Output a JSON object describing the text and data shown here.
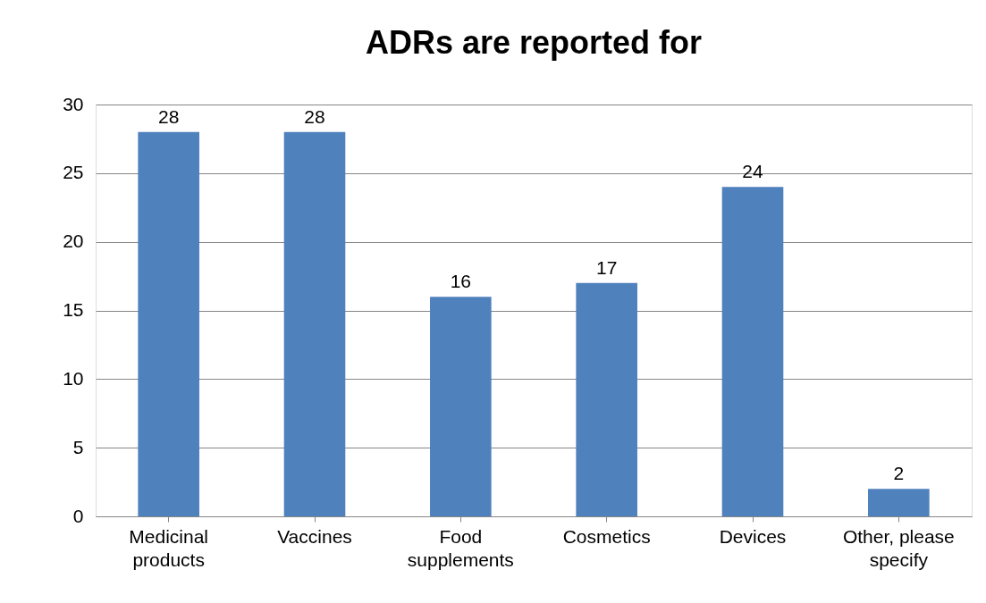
{
  "chart_data": {
    "type": "bar",
    "title": "ADRs are reported for",
    "categories": [
      "Medicinal products",
      "Vaccines",
      "Food supplements",
      "Cosmetics",
      "Devices",
      "Other, please specify"
    ],
    "values": [
      28,
      28,
      16,
      17,
      24,
      2
    ],
    "color": "#4f81bd",
    "ylim": [
      0,
      30
    ],
    "yticks": [
      0,
      5,
      10,
      15,
      20,
      25,
      30
    ],
    "grid": "y",
    "data_labels": true
  }
}
